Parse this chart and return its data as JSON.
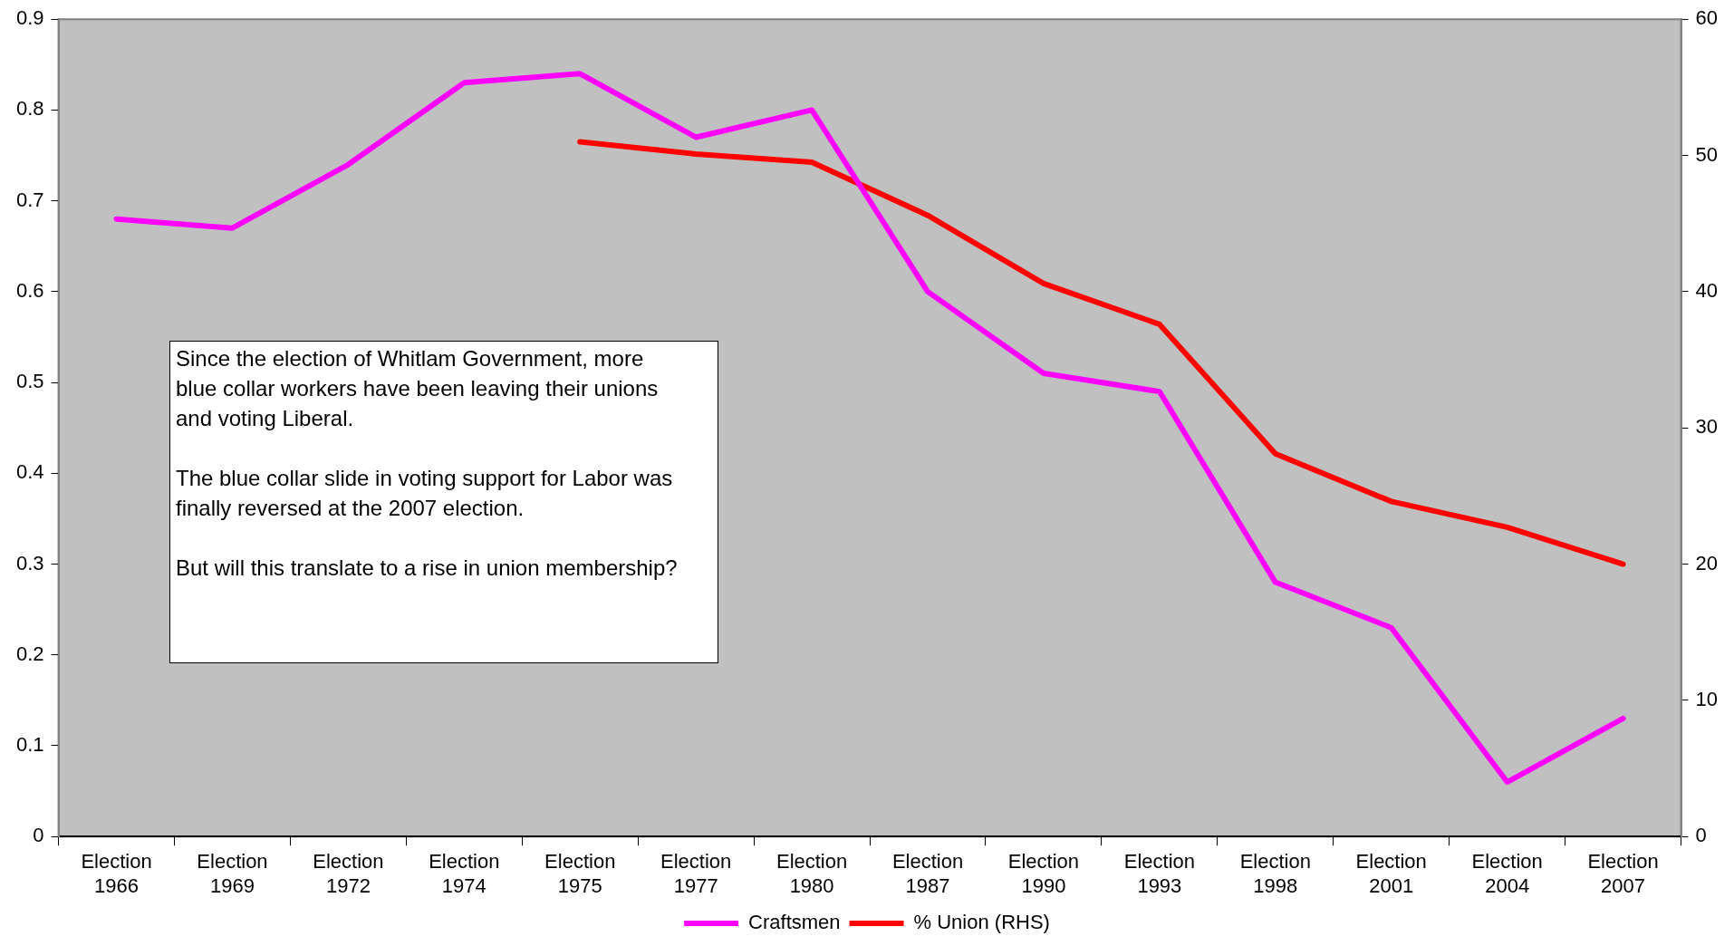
{
  "chart_data": {
    "type": "line",
    "categories": [
      "Election 1966",
      "Election 1969",
      "Election 1972",
      "Election 1974",
      "Election 1975",
      "Election 1977",
      "Election 1980",
      "Election 1987",
      "Election 1990",
      "Election 1993",
      "Election 1998",
      "Election 2001",
      "Election 2004",
      "Election 2007"
    ],
    "series": [
      {
        "name": "Craftsmen",
        "color": "#ff00ff",
        "values": [
          0.68,
          0.67,
          0.74,
          0.83,
          0.84,
          0.77,
          0.8,
          0.6,
          0.51,
          0.49,
          0.28,
          0.23,
          0.06,
          0.13
        ]
      },
      {
        "name": "% Union (RHS)",
        "color": "#ff0000",
        "axis": "y2",
        "values": [
          null,
          null,
          null,
          null,
          51.0,
          50.1,
          49.5,
          45.6,
          40.6,
          37.6,
          28.1,
          24.6,
          22.7,
          20.0
        ]
      }
    ],
    "ylim": [
      0,
      0.9
    ],
    "yticks": [
      0,
      0.1,
      0.2,
      0.3,
      0.4,
      0.5,
      0.6,
      0.7,
      0.8,
      0.9
    ],
    "y2lim": [
      0,
      60
    ],
    "y2ticks": [
      0,
      10,
      20,
      30,
      40,
      50,
      60
    ],
    "grid": false,
    "legend": "bottom",
    "marker": "none",
    "line_style": "solid",
    "annotations": [
      "Since the election of Whitlam Government, more blue collar workers have been leaving their unions and voting Liberal.\n\nThe blue collar slide in voting support for Labor was finally reversed at the 2007 election.\n\nBut will this translate to a rise in union membership?"
    ]
  }
}
